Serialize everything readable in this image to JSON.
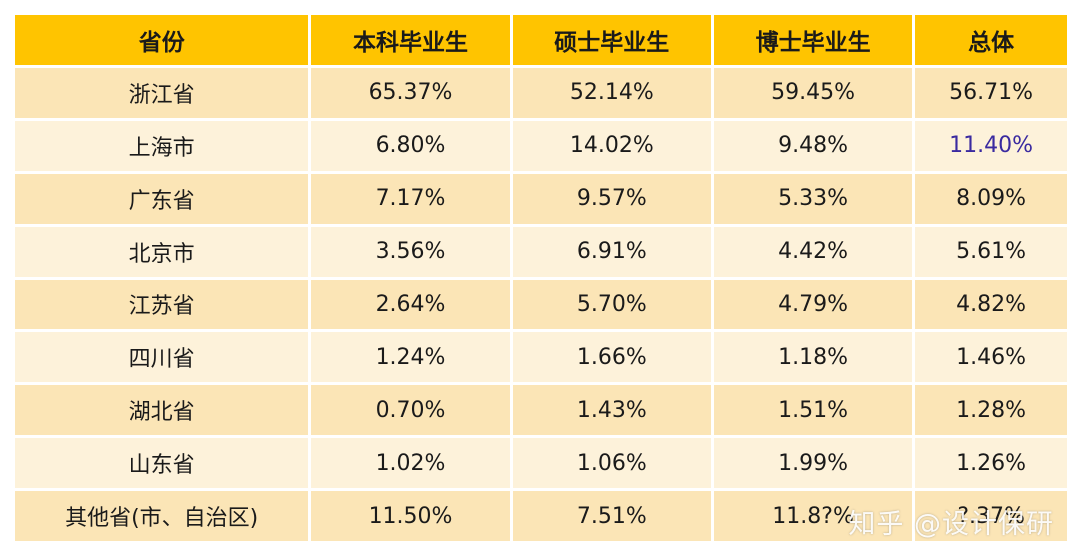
{
  "table": {
    "headers": [
      "省份",
      "本科毕业生",
      "硕士毕业生",
      "博士毕业生",
      "总体"
    ],
    "rows": [
      [
        "浙江省",
        "65.37%",
        "52.14%",
        "59.45%",
        "56.71%"
      ],
      [
        "上海市",
        "6.80%",
        "14.02%",
        "9.48%",
        "11.40%"
      ],
      [
        "广东省",
        "7.17%",
        "9.57%",
        "5.33%",
        "8.09%"
      ],
      [
        "北京市",
        "3.56%",
        "6.91%",
        "4.42%",
        "5.61%"
      ],
      [
        "江苏省",
        "2.64%",
        "5.70%",
        "4.79%",
        "4.82%"
      ],
      [
        "四川省",
        "1.24%",
        "1.66%",
        "1.18%",
        "1.46%"
      ],
      [
        "湖北省",
        "0.70%",
        "1.43%",
        "1.51%",
        "1.28%"
      ],
      [
        "山东省",
        "1.02%",
        "1.06%",
        "1.99%",
        "1.26%"
      ],
      [
        "其他省(市、自治区)",
        "11.50%",
        "7.51%",
        "11.8?%",
        "?.37%"
      ]
    ],
    "highlight_color": "#3a2aa0",
    "header_color": "#ffc400"
  },
  "watermark": "知乎 @设计保研"
}
